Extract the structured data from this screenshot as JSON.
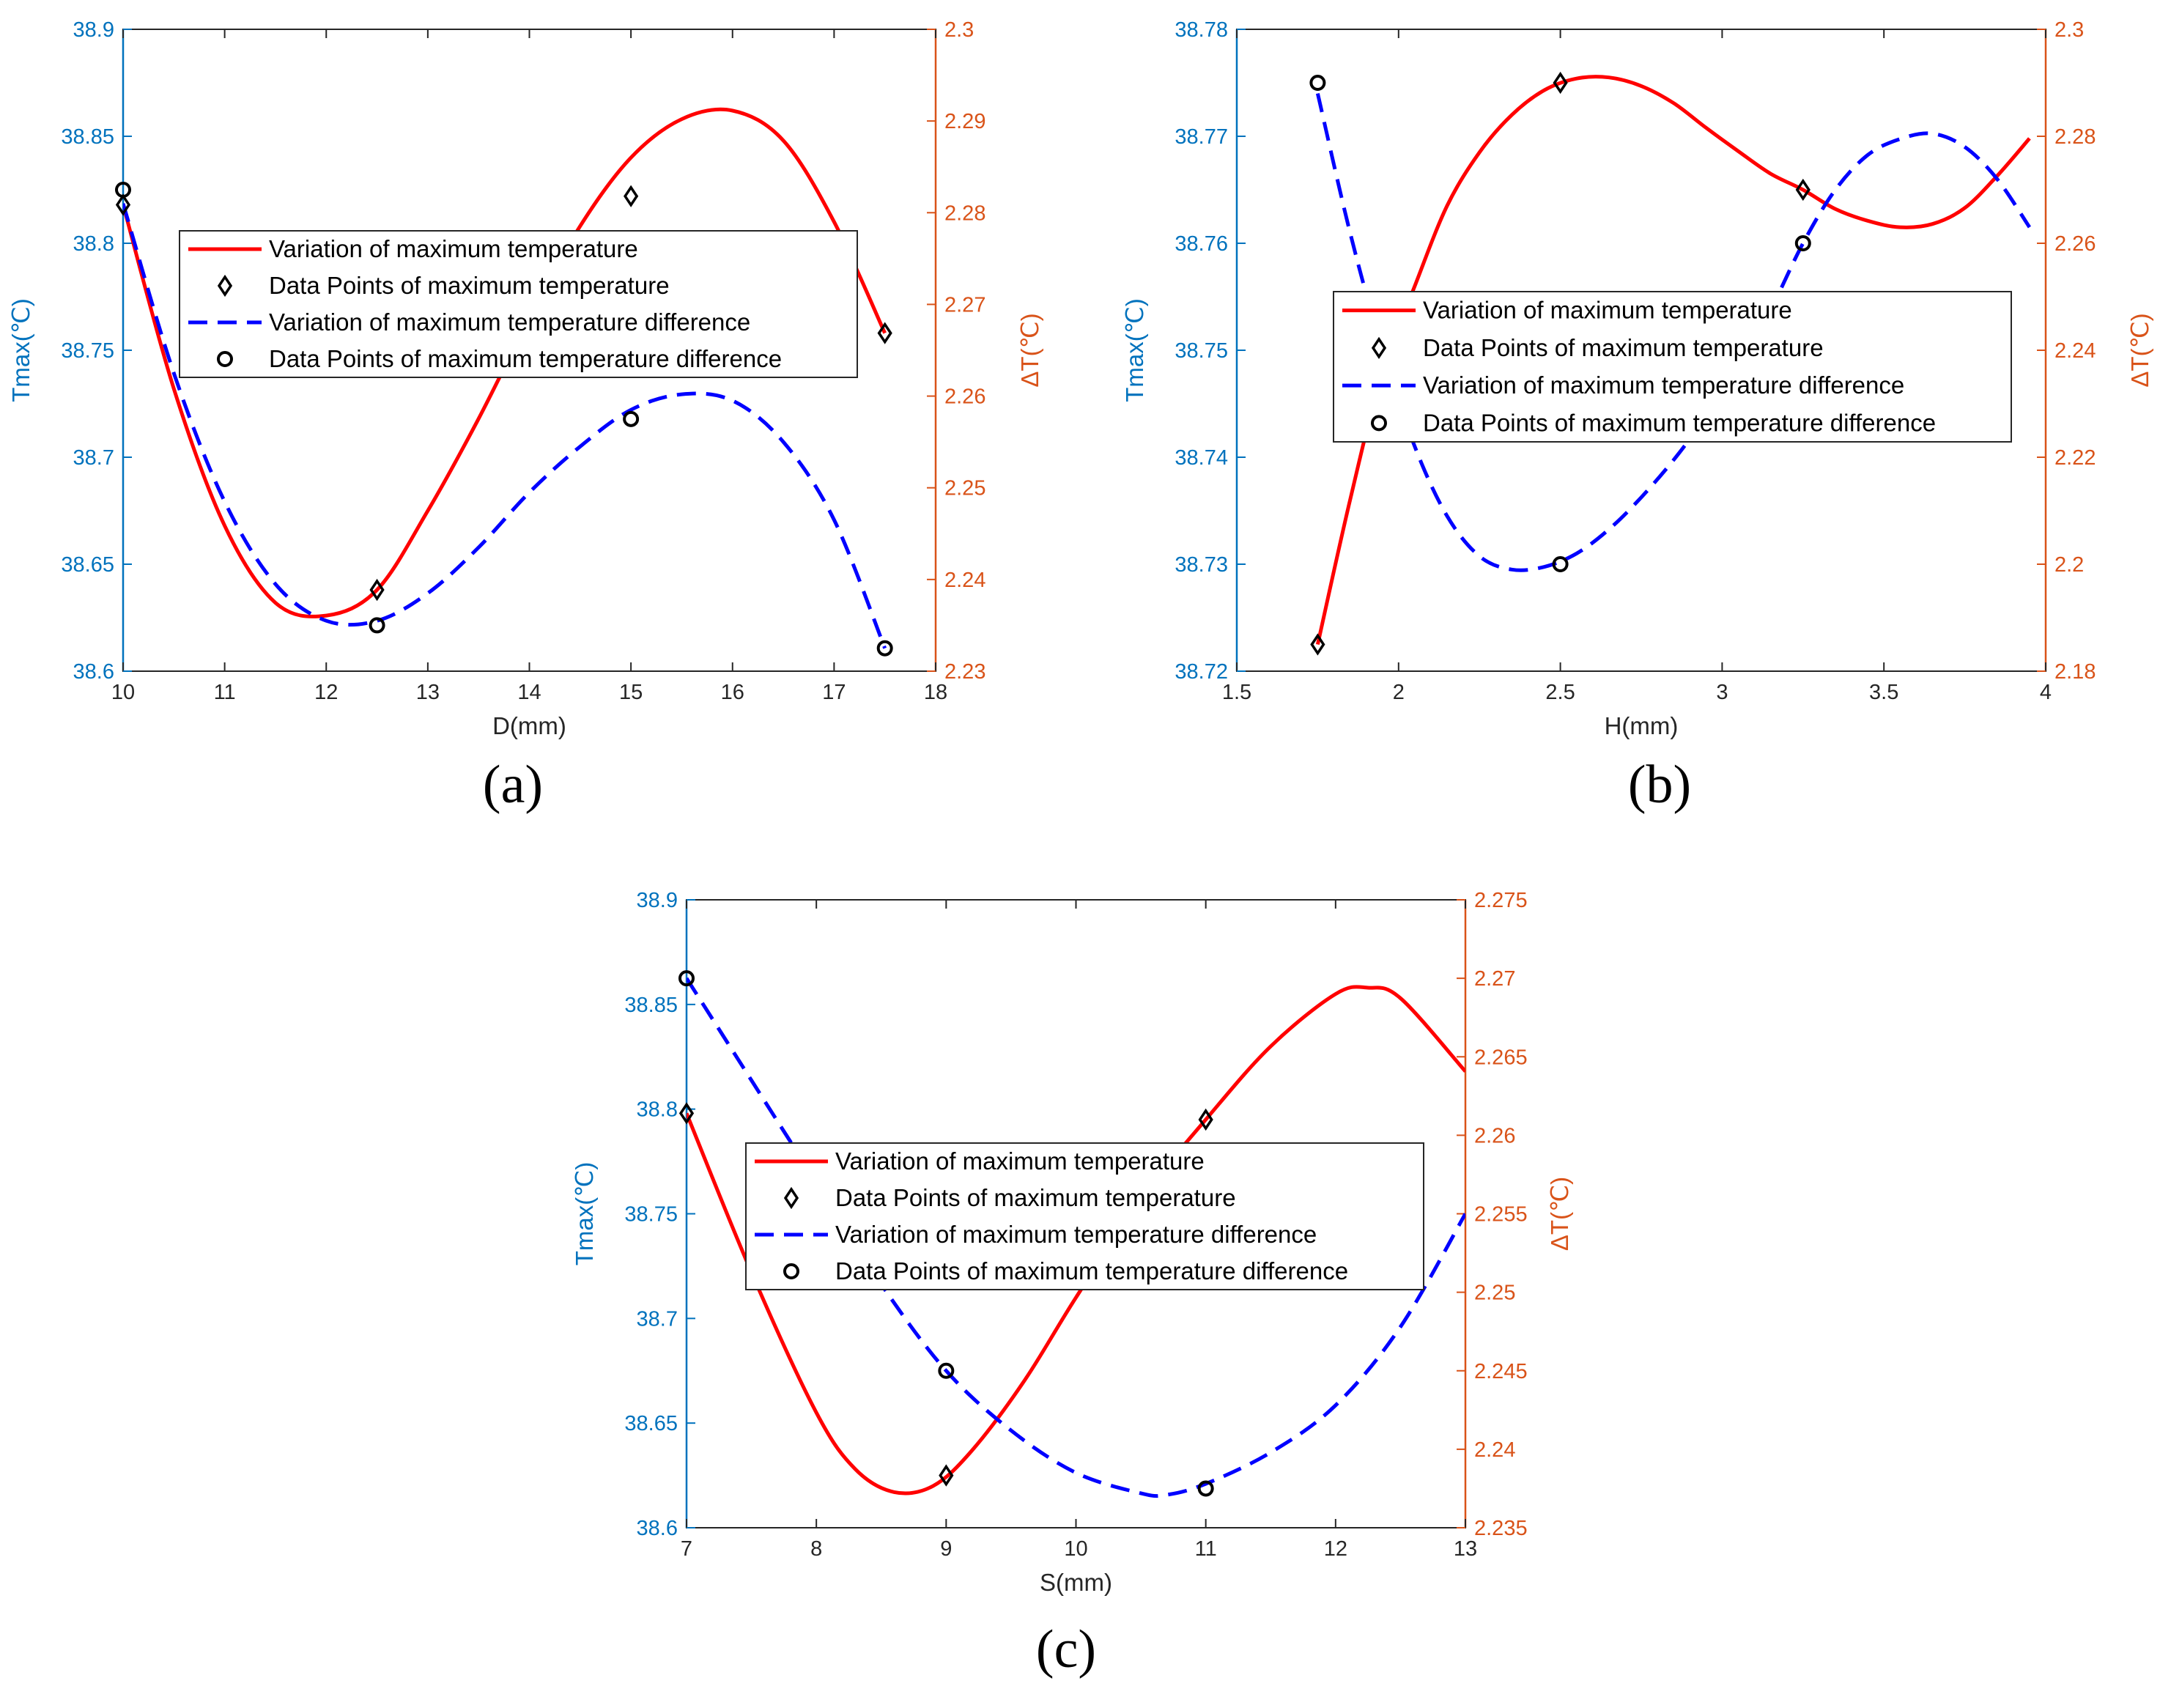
{
  "colors": {
    "left_axis": "#0072BD",
    "right_axis": "#D95319",
    "tmax_line": "#FF0000",
    "dt_line": "#0000FF",
    "axes": "#262626",
    "markers": "#000000"
  },
  "legend_labels": [
    "Variation of maximum temperature",
    "Data Points of maximum temperature",
    "Variation of maximum temperature difference",
    "Data Points of maximum temperature difference"
  ],
  "chart_data": [
    {
      "id": "a",
      "panel_label": "(a)",
      "type": "line",
      "xlabel": "D(mm)",
      "ylabel_left": "Tmax(℃)",
      "ylabel_right": "ΔT(℃)",
      "xlim": [
        10,
        18
      ],
      "ylim_left": [
        38.6,
        38.9
      ],
      "ylim_right": [
        2.23,
        2.3
      ],
      "x_ticks": [
        "10",
        "11",
        "12",
        "13",
        "14",
        "15",
        "16",
        "17",
        "18"
      ],
      "y_left_ticks": [
        "38.6",
        "38.65",
        "38.7",
        "38.75",
        "38.8",
        "38.85",
        "38.9"
      ],
      "y_right_ticks": [
        "2.23",
        "2.24",
        "2.25",
        "2.26",
        "2.27",
        "2.28",
        "2.29",
        "2.3"
      ],
      "tmax_points": {
        "x": [
          10,
          12.5,
          15,
          17.5
        ],
        "y": [
          38.818,
          38.638,
          38.822,
          38.758
        ]
      },
      "dt_points": {
        "x": [
          10,
          12.5,
          15,
          17.5
        ],
        "y": [
          2.2825,
          2.235,
          2.2575,
          2.2325
        ]
      },
      "tmax_curve": {
        "x": [
          10,
          10.5,
          11,
          11.5,
          12,
          12.5,
          13,
          13.5,
          14,
          14.5,
          15,
          15.5,
          16,
          16.5,
          17,
          17.5
        ],
        "y": [
          38.818,
          38.732,
          38.668,
          38.632,
          38.626,
          38.638,
          38.675,
          38.718,
          38.765,
          38.808,
          38.84,
          38.858,
          38.862,
          38.848,
          38.81,
          38.758
        ]
      },
      "dt_curve": {
        "x": [
          10,
          10.5,
          11,
          11.5,
          12,
          12.5,
          13,
          13.5,
          14,
          14.5,
          15,
          15.5,
          16,
          16.5,
          17,
          17.5
        ],
        "y": [
          2.281,
          2.2625,
          2.2485,
          2.2395,
          2.2355,
          2.2355,
          2.2385,
          2.2435,
          2.2495,
          2.2545,
          2.2585,
          2.2602,
          2.2595,
          2.255,
          2.2465,
          2.2325
        ]
      },
      "legend_position": "upper-middle"
    },
    {
      "id": "b",
      "panel_label": "(b)",
      "type": "line",
      "xlabel": "H(mm)",
      "ylabel_left": "Tmax(℃)",
      "ylabel_right": "ΔT(℃)",
      "xlim": [
        1.5,
        4
      ],
      "ylim_left": [
        38.72,
        38.78
      ],
      "ylim_right": [
        2.18,
        2.3
      ],
      "x_ticks": [
        "1.5",
        "2",
        "2.5",
        "3",
        "3.5",
        "4"
      ],
      "y_left_ticks": [
        "38.72",
        "38.73",
        "38.74",
        "38.75",
        "38.76",
        "38.77",
        "38.78"
      ],
      "y_right_ticks": [
        "2.18",
        "2.2",
        "2.22",
        "2.24",
        "2.26",
        "2.28",
        "2.3"
      ],
      "tmax_points": {
        "x": [
          1.75,
          2.5,
          3.25
        ],
        "y": [
          38.7225,
          38.775,
          38.765
        ]
      },
      "dt_points": {
        "x": [
          1.75,
          2.5,
          3.25
        ],
        "y": [
          2.29,
          2.2,
          2.26
        ]
      },
      "tmax_curve": {
        "x": [
          1.75,
          1.85,
          1.95,
          2.05,
          2.15,
          2.25,
          2.35,
          2.45,
          2.55,
          2.65,
          2.75,
          2.85,
          2.95,
          3.05,
          3.15,
          3.25,
          3.35,
          3.45,
          3.55,
          3.65,
          3.75,
          3.85,
          3.95
        ],
        "y": [
          38.7225,
          38.736,
          38.748,
          38.756,
          38.7635,
          38.7685,
          38.772,
          38.7743,
          38.7754,
          38.7755,
          38.7747,
          38.7731,
          38.7708,
          38.7686,
          38.7665,
          38.765,
          38.7632,
          38.7621,
          38.7615,
          38.7618,
          38.7633,
          38.7663,
          38.7698
        ]
      },
      "dt_curve": {
        "x": [
          1.75,
          1.85,
          1.95,
          2.05,
          2.15,
          2.25,
          2.35,
          2.45,
          2.55,
          2.65,
          2.75,
          2.85,
          2.95,
          3.05,
          3.15,
          3.25,
          3.35,
          3.45,
          3.55,
          3.65,
          3.75,
          3.85,
          3.95
        ],
        "y": [
          2.288,
          2.262,
          2.24,
          2.222,
          2.209,
          2.2015,
          2.199,
          2.1995,
          2.202,
          2.2065,
          2.2125,
          2.2195,
          2.2275,
          2.236,
          2.2475,
          2.26,
          2.27,
          2.2765,
          2.2795,
          2.2805,
          2.278,
          2.272,
          2.263
        ]
      },
      "legend_position": "middle-right"
    },
    {
      "id": "c",
      "panel_label": "(c)",
      "type": "line",
      "xlabel": "S(mm)",
      "ylabel_left": "Tmax(℃)",
      "ylabel_right": "ΔT(℃)",
      "xlim": [
        7,
        13
      ],
      "ylim_left": [
        38.6,
        38.9
      ],
      "ylim_right": [
        2.235,
        2.275
      ],
      "x_ticks": [
        "7",
        "8",
        "9",
        "10",
        "11",
        "12",
        "13"
      ],
      "y_left_ticks": [
        "38.6",
        "38.65",
        "38.7",
        "38.75",
        "38.8",
        "38.85",
        "38.9"
      ],
      "y_right_ticks": [
        "2.235",
        "2.24",
        "2.245",
        "2.25",
        "2.255",
        "2.26",
        "2.265",
        "2.27",
        "2.275"
      ],
      "tmax_points": {
        "x": [
          7,
          9,
          11
        ],
        "y": [
          38.798,
          38.625,
          38.795
        ]
      },
      "dt_points": {
        "x": [
          7,
          9,
          11
        ],
        "y": [
          2.27,
          2.245,
          2.2375
        ]
      },
      "tmax_curve": {
        "x": [
          7,
          7.5,
          8,
          8.3,
          8.6,
          8.9,
          9.2,
          9.6,
          10,
          10.5,
          11,
          11.5,
          12,
          12.25,
          12.5,
          13
        ],
        "y": [
          38.798,
          38.722,
          38.655,
          38.628,
          38.617,
          38.62,
          38.637,
          38.67,
          38.71,
          38.757,
          38.795,
          38.83,
          38.855,
          38.858,
          38.853,
          38.818
        ]
      },
      "dt_curve": {
        "x": [
          7,
          7.5,
          8,
          8.5,
          9,
          9.5,
          10,
          10.5,
          10.7,
          11,
          11.5,
          12,
          12.5,
          13
        ],
        "y": [
          2.27,
          2.2635,
          2.257,
          2.2505,
          2.245,
          2.2412,
          2.2385,
          2.2372,
          2.2371,
          2.2378,
          2.2398,
          2.2428,
          2.2478,
          2.255
        ]
      },
      "legend_position": "middle"
    }
  ]
}
